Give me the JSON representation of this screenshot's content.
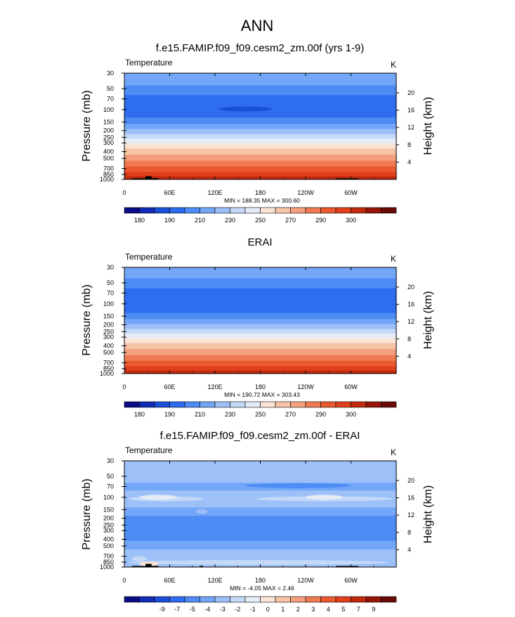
{
  "main_title": "ANN",
  "colorbar_abs": {
    "colors": [
      "#0b0b86",
      "#122cb8",
      "#1a4fd8",
      "#2e6cf0",
      "#4d8cf5",
      "#74a6f7",
      "#9dc0f8",
      "#c4d9f8",
      "#e4ecf6",
      "#fbe4d6",
      "#f7c4a7",
      "#f4a07e",
      "#f07b53",
      "#eb5a2f",
      "#e0401b",
      "#c22a0e",
      "#961508",
      "#6a0a06"
    ],
    "labels": [
      "180",
      "190",
      "210",
      "230",
      "250",
      "270",
      "290",
      "300"
    ]
  },
  "colorbar_diff": {
    "colors": [
      "#0b0b86",
      "#122cb8",
      "#1a4fd8",
      "#2e6cf0",
      "#4d8cf5",
      "#74a6f7",
      "#9dc0f8",
      "#c4d9f8",
      "#e4ecf6",
      "#fbe4d6",
      "#f7c4a7",
      "#f4a07e",
      "#f07b53",
      "#eb5a2f",
      "#e0401b",
      "#c22a0e",
      "#961508",
      "#6a0a06"
    ],
    "labels": [
      "-9",
      "-7",
      "-5",
      "-4",
      "-3",
      "-2",
      "-1",
      "0",
      "1",
      "2",
      "3",
      "4",
      "5",
      "7",
      "9"
    ]
  },
  "chart_data": [
    {
      "type": "heatmap",
      "title": "f.e15.FAMIP.f09_f09.cesm2_zm.00f (yrs 1-9)",
      "left_label": "Temperature",
      "right_label": "K",
      "ylabel": "Pressure (mb)",
      "ylabel_right": "Height (km)",
      "pressure_ticks": [
        "30",
        "50",
        "70",
        "100",
        "150",
        "200",
        "250",
        "300",
        "400",
        "500",
        "700",
        "850",
        "1000"
      ],
      "pressure_values": [
        30,
        50,
        70,
        100,
        150,
        200,
        250,
        300,
        400,
        500,
        700,
        850,
        1000
      ],
      "height_ticks": [
        "20",
        "16",
        "12",
        "8",
        "4"
      ],
      "height_values": [
        20,
        16,
        12,
        8,
        4
      ],
      "longitude_ticks": [
        "0",
        "60E",
        "120E",
        "180",
        "120W",
        "60W"
      ],
      "longitude_values": [
        0,
        60,
        120,
        180,
        240,
        300
      ],
      "xlim": [
        0,
        360
      ],
      "ylim": [
        1000,
        30
      ],
      "min_max": "MIN = 188.35  MAX = 300.60",
      "colorbar": "colorbar_abs",
      "bands": [
        {
          "p_top": 30,
          "p_bot": 45,
          "c": 5
        },
        {
          "p_top": 45,
          "p_bot": 62,
          "c": 4
        },
        {
          "p_top": 62,
          "p_bot": 130,
          "c": 3
        },
        {
          "p_top": 130,
          "p_bot": 160,
          "c": 4
        },
        {
          "p_top": 160,
          "p_bot": 190,
          "c": 5
        },
        {
          "p_top": 190,
          "p_bot": 225,
          "c": 6
        },
        {
          "p_top": 225,
          "p_bot": 260,
          "c": 7
        },
        {
          "p_top": 260,
          "p_bot": 305,
          "c": 8
        },
        {
          "p_top": 305,
          "p_bot": 360,
          "c": 9
        },
        {
          "p_top": 360,
          "p_bot": 440,
          "c": 10
        },
        {
          "p_top": 440,
          "p_bot": 540,
          "c": 11
        },
        {
          "p_top": 540,
          "p_bot": 650,
          "c": 12
        },
        {
          "p_top": 650,
          "p_bot": 780,
          "c": 13
        },
        {
          "p_top": 780,
          "p_bot": 900,
          "c": 14
        },
        {
          "p_top": 900,
          "p_bot": 1000,
          "c": 15
        }
      ],
      "blobs": [
        {
          "lon0": 125,
          "lon1": 195,
          "p": 98,
          "c": 2
        }
      ],
      "terrain": [
        {
          "lon0": 10,
          "lon1": 28,
          "p_top": 965
        },
        {
          "lon0": 28,
          "lon1": 36,
          "p_top": 900
        },
        {
          "lon0": 36,
          "lon1": 45,
          "p_top": 960
        },
        {
          "lon0": 280,
          "lon1": 310,
          "p_top": 965
        }
      ]
    },
    {
      "type": "heatmap",
      "title": "ERAI",
      "left_label": "Temperature",
      "right_label": "K",
      "ylabel": "Pressure (mb)",
      "ylabel_right": "Height (km)",
      "pressure_ticks": [
        "30",
        "50",
        "70",
        "100",
        "150",
        "200",
        "250",
        "300",
        "400",
        "500",
        "700",
        "850",
        "1000"
      ],
      "pressure_values": [
        30,
        50,
        70,
        100,
        150,
        200,
        250,
        300,
        400,
        500,
        700,
        850,
        1000
      ],
      "height_ticks": [
        "20",
        "16",
        "12",
        "8",
        "4"
      ],
      "height_values": [
        20,
        16,
        12,
        8,
        4
      ],
      "longitude_ticks": [
        "0",
        "60E",
        "120E",
        "180",
        "120W",
        "60W"
      ],
      "longitude_values": [
        0,
        60,
        120,
        180,
        240,
        300
      ],
      "xlim": [
        0,
        360
      ],
      "ylim": [
        1000,
        30
      ],
      "min_max": "MIN = 190.72  MAX = 303.43",
      "colorbar": "colorbar_abs",
      "bands": [
        {
          "p_top": 30,
          "p_bot": 43,
          "c": 5
        },
        {
          "p_top": 43,
          "p_bot": 60,
          "c": 4
        },
        {
          "p_top": 60,
          "p_bot": 135,
          "c": 3
        },
        {
          "p_top": 135,
          "p_bot": 165,
          "c": 4
        },
        {
          "p_top": 165,
          "p_bot": 195,
          "c": 5
        },
        {
          "p_top": 195,
          "p_bot": 230,
          "c": 6
        },
        {
          "p_top": 230,
          "p_bot": 265,
          "c": 7
        },
        {
          "p_top": 265,
          "p_bot": 310,
          "c": 8
        },
        {
          "p_top": 310,
          "p_bot": 365,
          "c": 9
        },
        {
          "p_top": 365,
          "p_bot": 445,
          "c": 10
        },
        {
          "p_top": 445,
          "p_bot": 545,
          "c": 11
        },
        {
          "p_top": 545,
          "p_bot": 655,
          "c": 12
        },
        {
          "p_top": 655,
          "p_bot": 785,
          "c": 13
        },
        {
          "p_top": 785,
          "p_bot": 905,
          "c": 14
        },
        {
          "p_top": 905,
          "p_bot": 1000,
          "c": 15
        }
      ],
      "blobs": [],
      "terrain": []
    },
    {
      "type": "heatmap",
      "title": "f.e15.FAMIP.f09_f09.cesm2_zm.00f - ERAI",
      "left_label": "Temperature",
      "right_label": "K",
      "ylabel": "Pressure (mb)",
      "ylabel_right": "Height (km)",
      "pressure_ticks": [
        "30",
        "50",
        "70",
        "100",
        "150",
        "200",
        "250",
        "300",
        "400",
        "500",
        "700",
        "850",
        "1000"
      ],
      "pressure_values": [
        30,
        50,
        70,
        100,
        150,
        200,
        250,
        300,
        400,
        500,
        700,
        850,
        1000
      ],
      "height_ticks": [
        "20",
        "16",
        "12",
        "8",
        "4"
      ],
      "height_values": [
        20,
        16,
        12,
        8,
        4
      ],
      "longitude_ticks": [
        "0",
        "60E",
        "120E",
        "180",
        "120W",
        "60W"
      ],
      "longitude_values": [
        0,
        60,
        120,
        180,
        240,
        300
      ],
      "xlim": [
        0,
        360
      ],
      "ylim": [
        1000,
        30
      ],
      "min_max": "MIN = -4.05  MAX =  2.46",
      "colorbar": "colorbar_diff",
      "bands": [
        {
          "p_top": 30,
          "p_bot": 62,
          "c": 6
        },
        {
          "p_top": 62,
          "p_bot": 80,
          "c": 5
        },
        {
          "p_top": 80,
          "p_bot": 140,
          "c": 6
        },
        {
          "p_top": 140,
          "p_bot": 185,
          "c": 5
        },
        {
          "p_top": 185,
          "p_bot": 420,
          "c": 4
        },
        {
          "p_top": 420,
          "p_bot": 560,
          "c": 5
        },
        {
          "p_top": 560,
          "p_bot": 1000,
          "c": 6
        }
      ],
      "blobs": [
        {
          "lon0": 5,
          "lon1": 105,
          "p": 105,
          "c": 7
        },
        {
          "lon0": 175,
          "lon1": 355,
          "p": 105,
          "c": 7
        },
        {
          "lon0": 20,
          "lon1": 70,
          "p": 100,
          "c": 8
        },
        {
          "lon0": 240,
          "lon1": 290,
          "p": 100,
          "c": 8
        },
        {
          "lon0": 160,
          "lon1": 300,
          "p": 68,
          "c": 4
        },
        {
          "lon0": 95,
          "lon1": 110,
          "p": 160,
          "c": 6
        },
        {
          "lon0": 5,
          "lon1": 350,
          "p": 860,
          "c": 7
        },
        {
          "lon0": 20,
          "lon1": 45,
          "p": 900,
          "c": 9
        },
        {
          "lon0": 10,
          "lon1": 30,
          "p": 760,
          "c": 7
        }
      ],
      "terrain": [
        {
          "lon0": 10,
          "lon1": 28,
          "p_top": 965
        },
        {
          "lon0": 28,
          "lon1": 36,
          "p_top": 900
        },
        {
          "lon0": 36,
          "lon1": 45,
          "p_top": 960
        },
        {
          "lon0": 100,
          "lon1": 104,
          "p_top": 960
        },
        {
          "lon0": 280,
          "lon1": 310,
          "p_top": 965
        }
      ]
    }
  ]
}
